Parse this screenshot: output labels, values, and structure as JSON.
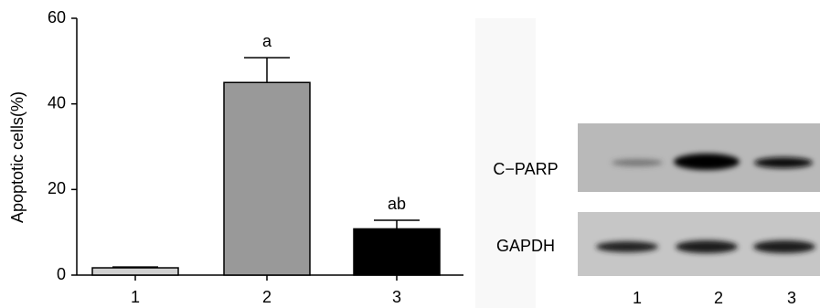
{
  "chart_data": {
    "type": "bar",
    "ylabel": "Apoptotic cells(%)",
    "categories": [
      "1",
      "2",
      "3"
    ],
    "values": [
      1.7,
      45,
      10.8
    ],
    "errors": [
      0.2,
      5.8,
      2.0
    ],
    "colors": [
      "#d0d0d0",
      "#999999",
      "#000000"
    ],
    "annotations": [
      null,
      "a",
      "ab"
    ],
    "ylim": [
      0,
      60
    ],
    "yticks": [
      0,
      20,
      40,
      60
    ]
  },
  "blot": {
    "rows": [
      "C−PARP",
      "GAPDH"
    ],
    "lanes": [
      "1",
      "2",
      "3"
    ]
  }
}
